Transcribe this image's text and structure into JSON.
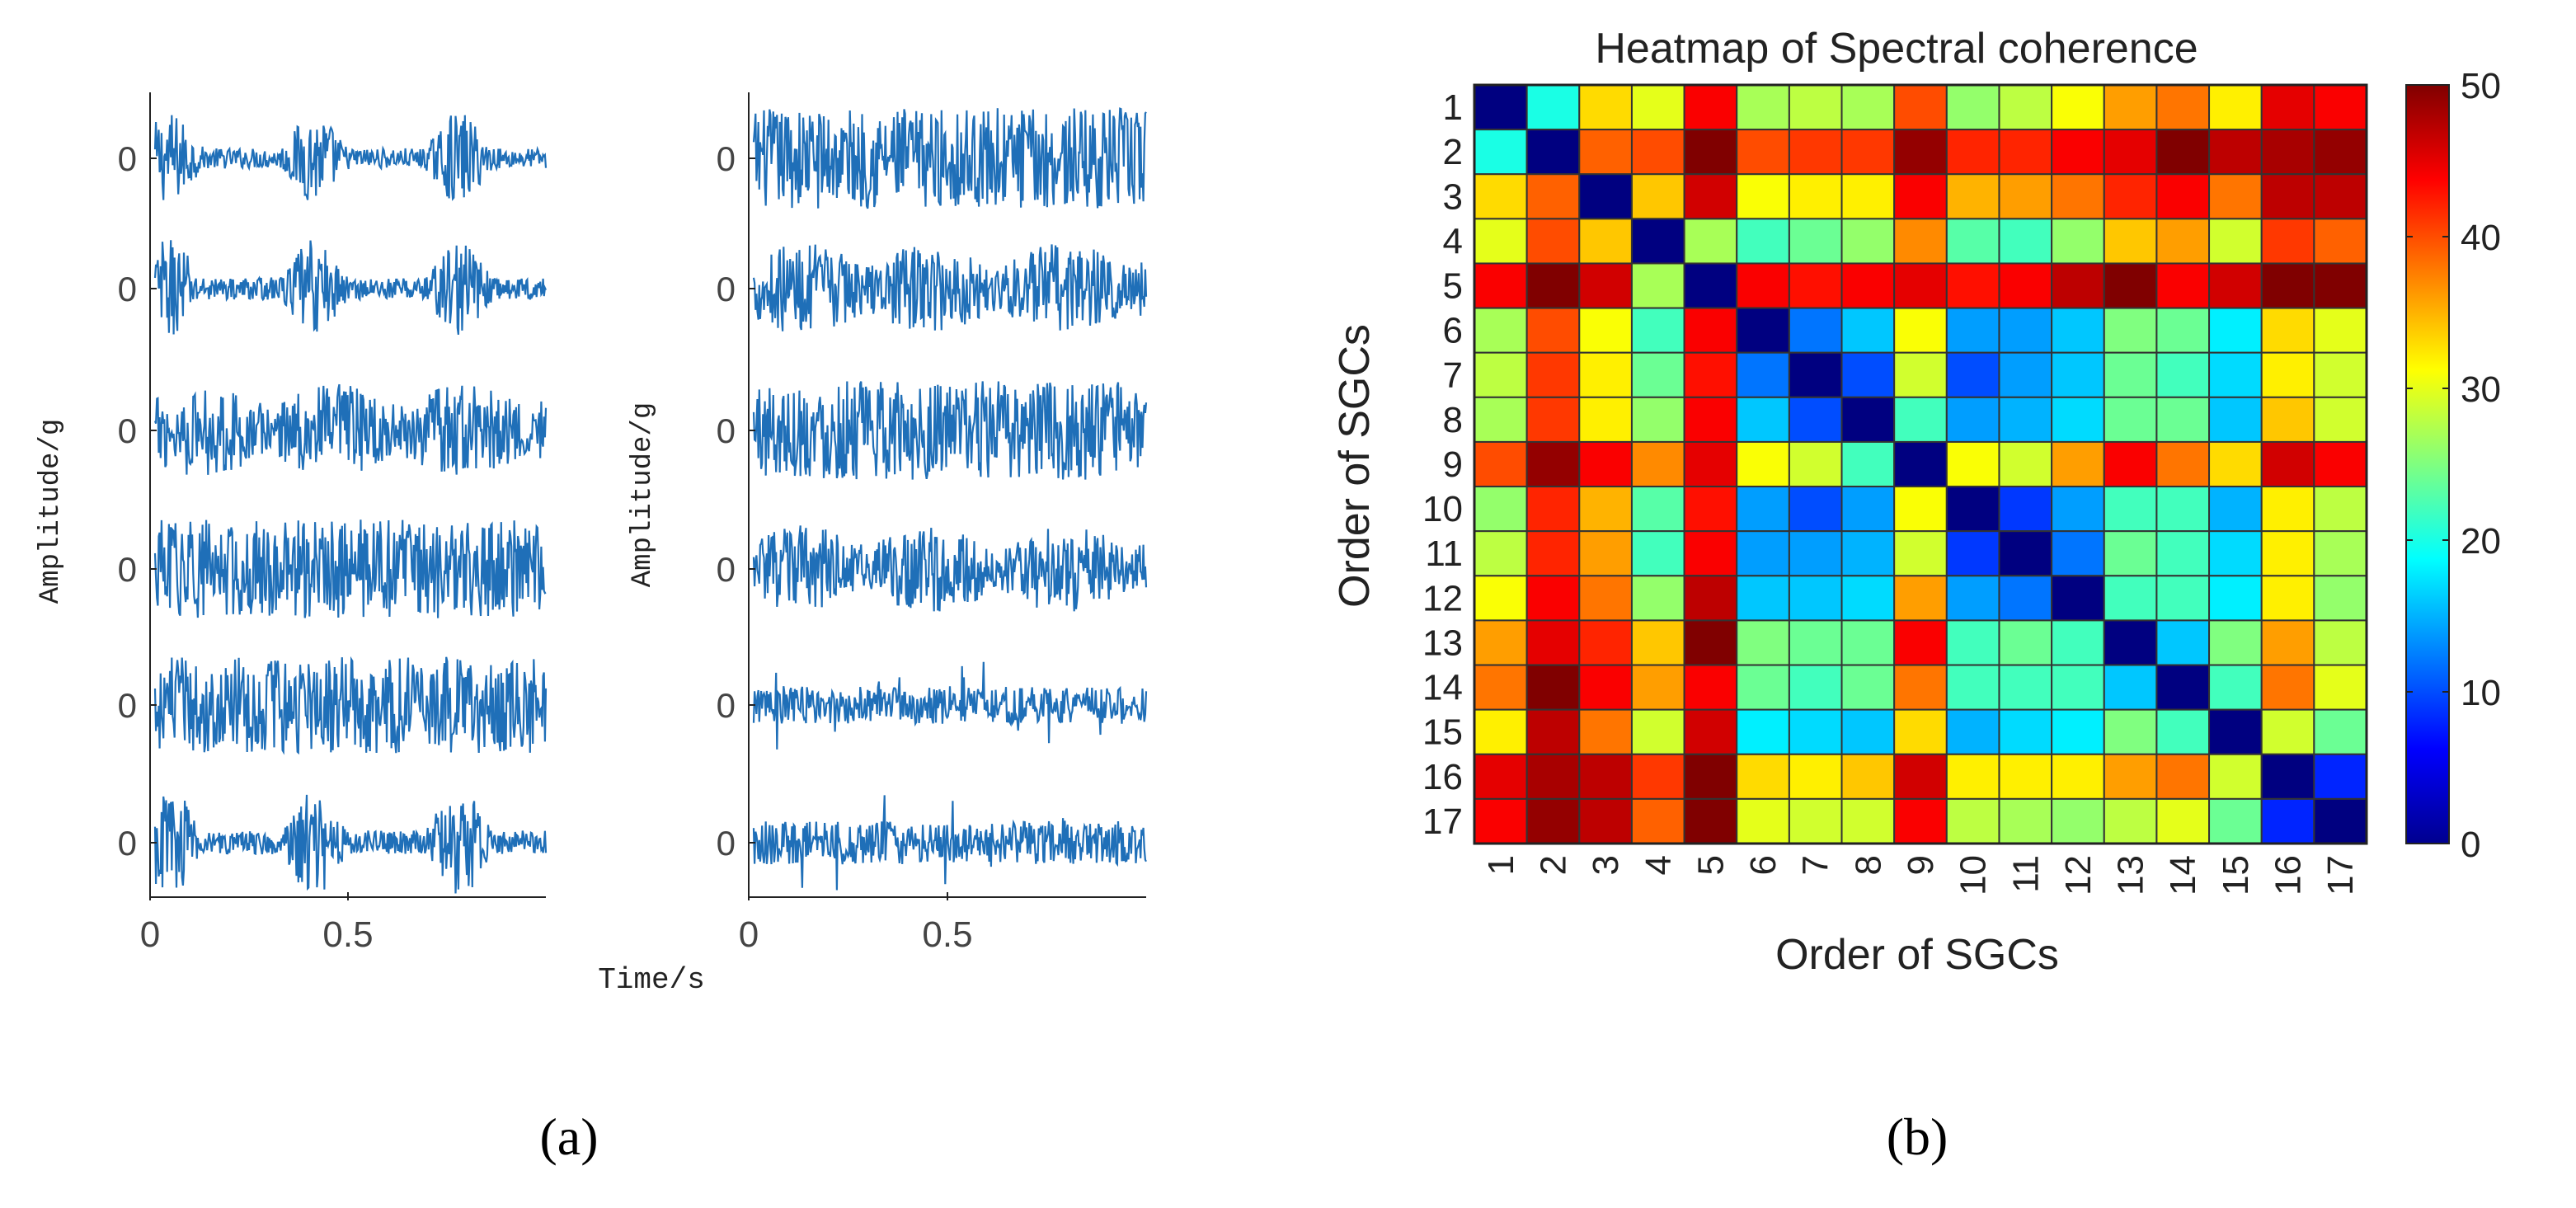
{
  "chart_data": [
    {
      "panel": "a",
      "type": "line",
      "panel_label": "(a)",
      "xlabel": "Time/s",
      "ylabel_left": "Amplitude/g",
      "ylabel_right": "Amplitude/g",
      "x_ticks": [
        "0",
        "0.5"
      ],
      "xlim": [
        0,
        1
      ],
      "y_tick_label": "0",
      "series_color": "#1f6fb8",
      "columns": [
        {
          "name": "left",
          "signals": [
            {
              "name": "left-1",
              "pattern": "bursts",
              "amplitude": 0.72
            },
            {
              "name": "left-2",
              "pattern": "bursts",
              "amplitude": 0.78
            },
            {
              "name": "left-3",
              "pattern": "modulated",
              "amplitude": 0.8
            },
            {
              "name": "left-4",
              "pattern": "dense",
              "amplitude": 0.9
            },
            {
              "name": "left-5",
              "pattern": "dense",
              "amplitude": 0.88
            },
            {
              "name": "left-6",
              "pattern": "bursts",
              "amplitude": 0.86
            }
          ]
        },
        {
          "name": "right",
          "signals": [
            {
              "name": "right-1",
              "pattern": "dense",
              "amplitude": 0.92
            },
            {
              "name": "right-2",
              "pattern": "modulated",
              "amplitude": 0.78
            },
            {
              "name": "right-3",
              "pattern": "dense",
              "amplitude": 0.9
            },
            {
              "name": "right-4",
              "pattern": "modulated",
              "amplitude": 0.75
            },
            {
              "name": "right-5",
              "pattern": "spiky",
              "amplitude": 0.7
            },
            {
              "name": "right-6",
              "pattern": "spiky",
              "amplitude": 0.8
            }
          ]
        }
      ]
    },
    {
      "panel": "b",
      "type": "heatmap",
      "panel_label": "(b)",
      "title": "Heatmap of Spectral coherence",
      "xlabel": "Order of SGCs",
      "ylabel": "Order of SGCs",
      "x_labels": [
        "1",
        "2",
        "3",
        "4",
        "5",
        "6",
        "7",
        "8",
        "9",
        "10",
        "11",
        "12",
        "13",
        "14",
        "15",
        "16",
        "17"
      ],
      "y_labels": [
        "1",
        "2",
        "3",
        "4",
        "5",
        "6",
        "7",
        "8",
        "9",
        "10",
        "11",
        "12",
        "13",
        "14",
        "15",
        "16",
        "17"
      ],
      "colorbar": {
        "min": 0,
        "max": 50,
        "ticks": [
          0,
          10,
          20,
          30,
          40,
          50
        ],
        "colormap": "jet"
      },
      "values": [
        [
          0,
          20,
          33,
          30,
          44,
          27,
          28,
          27,
          40,
          26,
          28,
          31,
          36,
          38,
          32,
          45,
          44
        ],
        [
          20,
          0,
          39,
          40,
          51,
          40,
          41,
          41,
          49,
          42,
          42,
          44,
          45,
          50,
          47,
          48,
          49
        ],
        [
          33,
          39,
          0,
          34,
          46,
          31,
          32,
          32,
          44,
          35,
          36,
          38,
          42,
          44,
          38,
          47,
          47
        ],
        [
          30,
          40,
          34,
          0,
          27,
          22,
          24,
          26,
          37,
          23,
          22,
          26,
          34,
          36,
          29,
          41,
          39
        ],
        [
          44,
          51,
          46,
          27,
          0,
          44,
          43,
          44,
          45,
          43,
          44,
          47,
          50,
          44,
          46,
          51,
          51
        ],
        [
          27,
          40,
          31,
          22,
          44,
          0,
          12,
          16,
          31,
          14,
          14,
          16,
          25,
          24,
          18,
          33,
          30
        ],
        [
          28,
          41,
          32,
          24,
          43,
          12,
          0,
          10,
          29,
          10,
          14,
          16,
          24,
          22,
          17,
          32,
          29
        ],
        [
          27,
          41,
          32,
          26,
          44,
          16,
          10,
          0,
          22,
          14,
          15,
          17,
          24,
          24,
          16,
          34,
          29
        ],
        [
          40,
          49,
          44,
          37,
          45,
          31,
          29,
          22,
          0,
          31,
          29,
          36,
          44,
          38,
          33,
          46,
          44
        ],
        [
          26,
          42,
          35,
          23,
          43,
          14,
          10,
          14,
          31,
          0,
          9,
          14,
          22,
          22,
          15,
          32,
          28
        ],
        [
          28,
          42,
          36,
          22,
          44,
          14,
          14,
          15,
          29,
          9,
          0,
          12,
          24,
          22,
          17,
          32,
          27
        ],
        [
          31,
          44,
          38,
          26,
          47,
          16,
          16,
          17,
          36,
          14,
          12,
          0,
          22,
          22,
          18,
          32,
          26
        ],
        [
          36,
          45,
          42,
          34,
          50,
          25,
          24,
          24,
          44,
          22,
          24,
          22,
          0,
          16,
          25,
          36,
          28
        ],
        [
          38,
          50,
          44,
          36,
          44,
          24,
          22,
          24,
          38,
          22,
          22,
          22,
          16,
          0,
          22,
          38,
          30
        ],
        [
          32,
          47,
          38,
          29,
          46,
          18,
          17,
          16,
          33,
          15,
          17,
          18,
          25,
          22,
          0,
          29,
          24
        ],
        [
          45,
          48,
          47,
          41,
          51,
          33,
          32,
          34,
          46,
          32,
          32,
          32,
          36,
          38,
          29,
          0,
          8
        ],
        [
          44,
          49,
          47,
          39,
          51,
          30,
          29,
          29,
          44,
          28,
          27,
          26,
          28,
          30,
          24,
          8,
          0
        ]
      ]
    }
  ]
}
